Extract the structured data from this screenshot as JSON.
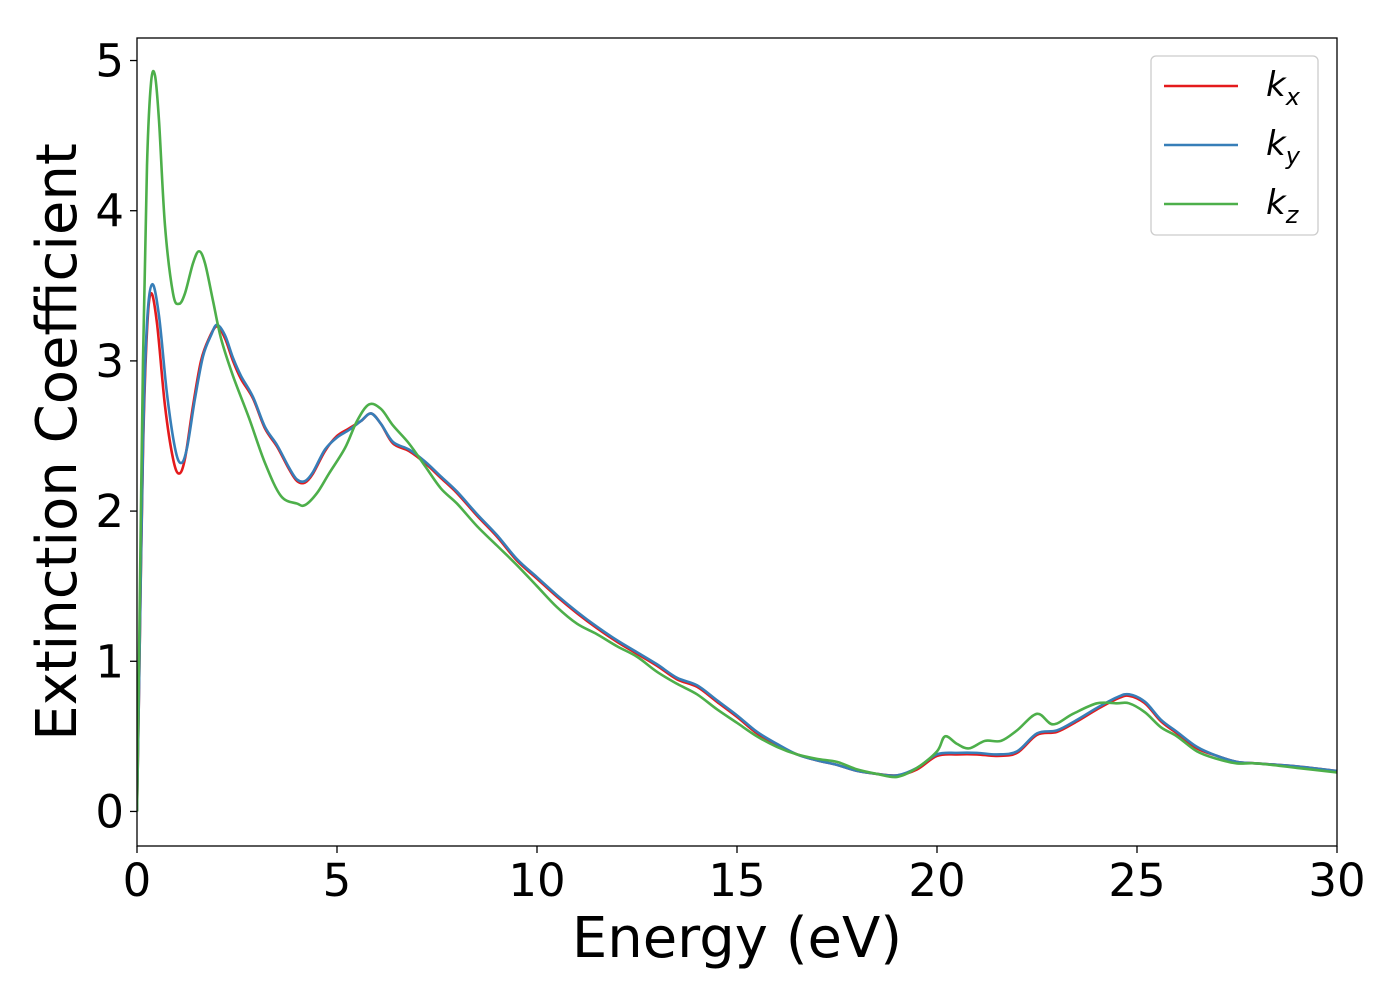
{
  "chart_data": {
    "type": "line",
    "xlabel": "Energy (eV)",
    "ylabel": "Extinction Coefficient",
    "xlim": [
      0,
      30
    ],
    "ylim": [
      -0.23,
      5.15
    ],
    "xticks": [
      0,
      5,
      10,
      15,
      20,
      25,
      30
    ],
    "yticks": [
      0,
      1,
      2,
      3,
      4,
      5
    ],
    "xtick_labels": [
      "0",
      "5",
      "10",
      "15",
      "20",
      "25",
      "30"
    ],
    "ytick_labels": [
      "0",
      "1",
      "2",
      "3",
      "4",
      "5"
    ],
    "grid": false,
    "legend_position": "top-right",
    "series": [
      {
        "name": "k",
        "name_sub": "x",
        "color": "#e41a1c",
        "points": [
          [
            0,
            0
          ],
          [
            0.05,
            0.8
          ],
          [
            0.15,
            2.4
          ],
          [
            0.25,
            3.2
          ],
          [
            0.35,
            3.45
          ],
          [
            0.5,
            3.25
          ],
          [
            0.7,
            2.7
          ],
          [
            0.9,
            2.35
          ],
          [
            1.05,
            2.25
          ],
          [
            1.2,
            2.35
          ],
          [
            1.4,
            2.7
          ],
          [
            1.6,
            3.0
          ],
          [
            1.8,
            3.15
          ],
          [
            2.0,
            3.23
          ],
          [
            2.2,
            3.15
          ],
          [
            2.4,
            3.0
          ],
          [
            2.6,
            2.88
          ],
          [
            2.9,
            2.75
          ],
          [
            3.2,
            2.55
          ],
          [
            3.5,
            2.43
          ],
          [
            3.8,
            2.28
          ],
          [
            4.0,
            2.2
          ],
          [
            4.2,
            2.19
          ],
          [
            4.4,
            2.25
          ],
          [
            4.7,
            2.4
          ],
          [
            5.0,
            2.5
          ],
          [
            5.3,
            2.55
          ],
          [
            5.6,
            2.6
          ],
          [
            5.85,
            2.65
          ],
          [
            6.1,
            2.58
          ],
          [
            6.4,
            2.45
          ],
          [
            6.8,
            2.4
          ],
          [
            7.2,
            2.32
          ],
          [
            7.6,
            2.22
          ],
          [
            8.0,
            2.12
          ],
          [
            8.5,
            1.97
          ],
          [
            9.0,
            1.83
          ],
          [
            9.5,
            1.67
          ],
          [
            10.0,
            1.55
          ],
          [
            10.5,
            1.43
          ],
          [
            11.0,
            1.32
          ],
          [
            11.5,
            1.22
          ],
          [
            12.0,
            1.13
          ],
          [
            12.5,
            1.05
          ],
          [
            13.0,
            0.97
          ],
          [
            13.5,
            0.88
          ],
          [
            14.0,
            0.83
          ],
          [
            14.5,
            0.73
          ],
          [
            15.0,
            0.63
          ],
          [
            15.5,
            0.52
          ],
          [
            16.0,
            0.44
          ],
          [
            16.5,
            0.38
          ],
          [
            17.0,
            0.34
          ],
          [
            17.5,
            0.31
          ],
          [
            18.0,
            0.27
          ],
          [
            18.5,
            0.25
          ],
          [
            19.0,
            0.24
          ],
          [
            19.5,
            0.28
          ],
          [
            20.0,
            0.37
          ],
          [
            20.5,
            0.38
          ],
          [
            21.0,
            0.38
          ],
          [
            21.5,
            0.37
          ],
          [
            22.0,
            0.39
          ],
          [
            22.5,
            0.51
          ],
          [
            23.0,
            0.53
          ],
          [
            23.5,
            0.6
          ],
          [
            24.0,
            0.68
          ],
          [
            24.5,
            0.75
          ],
          [
            24.8,
            0.77
          ],
          [
            25.2,
            0.72
          ],
          [
            25.6,
            0.6
          ],
          [
            26.0,
            0.52
          ],
          [
            26.5,
            0.42
          ],
          [
            27.0,
            0.37
          ],
          [
            27.5,
            0.33
          ],
          [
            28.0,
            0.32
          ],
          [
            29.0,
            0.3
          ],
          [
            30.0,
            0.27
          ]
        ]
      },
      {
        "name": "k",
        "name_sub": "y",
        "color": "#377eb8",
        "points": [
          [
            0,
            0
          ],
          [
            0.05,
            0.8
          ],
          [
            0.15,
            2.45
          ],
          [
            0.25,
            3.25
          ],
          [
            0.38,
            3.51
          ],
          [
            0.55,
            3.3
          ],
          [
            0.75,
            2.78
          ],
          [
            0.95,
            2.42
          ],
          [
            1.1,
            2.32
          ],
          [
            1.25,
            2.42
          ],
          [
            1.45,
            2.75
          ],
          [
            1.65,
            3.03
          ],
          [
            1.85,
            3.17
          ],
          [
            2.0,
            3.24
          ],
          [
            2.2,
            3.17
          ],
          [
            2.4,
            3.02
          ],
          [
            2.6,
            2.9
          ],
          [
            2.9,
            2.76
          ],
          [
            3.2,
            2.56
          ],
          [
            3.5,
            2.44
          ],
          [
            3.8,
            2.29
          ],
          [
            4.0,
            2.21
          ],
          [
            4.2,
            2.2
          ],
          [
            4.4,
            2.26
          ],
          [
            4.7,
            2.41
          ],
          [
            5.0,
            2.49
          ],
          [
            5.3,
            2.54
          ],
          [
            5.6,
            2.6
          ],
          [
            5.85,
            2.65
          ],
          [
            6.1,
            2.58
          ],
          [
            6.4,
            2.46
          ],
          [
            6.8,
            2.41
          ],
          [
            7.2,
            2.33
          ],
          [
            7.6,
            2.23
          ],
          [
            8.0,
            2.13
          ],
          [
            8.5,
            1.98
          ],
          [
            9.0,
            1.84
          ],
          [
            9.5,
            1.68
          ],
          [
            10.0,
            1.56
          ],
          [
            10.5,
            1.44
          ],
          [
            11.0,
            1.33
          ],
          [
            11.5,
            1.23
          ],
          [
            12.0,
            1.14
          ],
          [
            12.5,
            1.06
          ],
          [
            13.0,
            0.98
          ],
          [
            13.5,
            0.89
          ],
          [
            14.0,
            0.84
          ],
          [
            14.5,
            0.74
          ],
          [
            15.0,
            0.64
          ],
          [
            15.5,
            0.53
          ],
          [
            16.0,
            0.45
          ],
          [
            16.5,
            0.38
          ],
          [
            17.0,
            0.34
          ],
          [
            17.5,
            0.31
          ],
          [
            18.0,
            0.27
          ],
          [
            18.5,
            0.25
          ],
          [
            19.0,
            0.24
          ],
          [
            19.5,
            0.29
          ],
          [
            20.0,
            0.38
          ],
          [
            20.5,
            0.39
          ],
          [
            21.0,
            0.39
          ],
          [
            21.5,
            0.38
          ],
          [
            22.0,
            0.4
          ],
          [
            22.5,
            0.52
          ],
          [
            23.0,
            0.54
          ],
          [
            23.5,
            0.61
          ],
          [
            24.0,
            0.69
          ],
          [
            24.5,
            0.76
          ],
          [
            24.8,
            0.78
          ],
          [
            25.2,
            0.73
          ],
          [
            25.6,
            0.61
          ],
          [
            26.0,
            0.53
          ],
          [
            26.5,
            0.43
          ],
          [
            27.0,
            0.37
          ],
          [
            27.5,
            0.33
          ],
          [
            28.0,
            0.32
          ],
          [
            29.0,
            0.3
          ],
          [
            30.0,
            0.27
          ]
        ]
      },
      {
        "name": "k",
        "name_sub": "z",
        "color": "#4daf4a",
        "points": [
          [
            0,
            0
          ],
          [
            0.05,
            1.0
          ],
          [
            0.15,
            3.0
          ],
          [
            0.25,
            4.3
          ],
          [
            0.35,
            4.85
          ],
          [
            0.45,
            4.9
          ],
          [
            0.55,
            4.6
          ],
          [
            0.7,
            3.9
          ],
          [
            0.9,
            3.45
          ],
          [
            1.05,
            3.38
          ],
          [
            1.2,
            3.45
          ],
          [
            1.4,
            3.65
          ],
          [
            1.55,
            3.73
          ],
          [
            1.7,
            3.65
          ],
          [
            1.9,
            3.4
          ],
          [
            2.1,
            3.15
          ],
          [
            2.4,
            2.9
          ],
          [
            2.8,
            2.62
          ],
          [
            3.2,
            2.32
          ],
          [
            3.6,
            2.1
          ],
          [
            4.0,
            2.05
          ],
          [
            4.2,
            2.04
          ],
          [
            4.5,
            2.12
          ],
          [
            4.8,
            2.25
          ],
          [
            5.2,
            2.42
          ],
          [
            5.5,
            2.6
          ],
          [
            5.8,
            2.71
          ],
          [
            6.1,
            2.68
          ],
          [
            6.4,
            2.57
          ],
          [
            6.8,
            2.45
          ],
          [
            7.2,
            2.3
          ],
          [
            7.6,
            2.15
          ],
          [
            8.0,
            2.05
          ],
          [
            8.5,
            1.9
          ],
          [
            9.0,
            1.77
          ],
          [
            9.5,
            1.64
          ],
          [
            10.0,
            1.5
          ],
          [
            10.5,
            1.36
          ],
          [
            11.0,
            1.25
          ],
          [
            11.5,
            1.18
          ],
          [
            12.0,
            1.1
          ],
          [
            12.5,
            1.03
          ],
          [
            13.0,
            0.93
          ],
          [
            13.5,
            0.85
          ],
          [
            14.0,
            0.78
          ],
          [
            14.5,
            0.68
          ],
          [
            15.0,
            0.59
          ],
          [
            15.5,
            0.5
          ],
          [
            16.0,
            0.43
          ],
          [
            16.5,
            0.38
          ],
          [
            17.0,
            0.35
          ],
          [
            17.5,
            0.33
          ],
          [
            18.0,
            0.28
          ],
          [
            18.5,
            0.25
          ],
          [
            19.0,
            0.23
          ],
          [
            19.5,
            0.29
          ],
          [
            20.0,
            0.4
          ],
          [
            20.2,
            0.5
          ],
          [
            20.5,
            0.45
          ],
          [
            20.8,
            0.42
          ],
          [
            21.2,
            0.47
          ],
          [
            21.6,
            0.47
          ],
          [
            22.0,
            0.54
          ],
          [
            22.5,
            0.65
          ],
          [
            22.9,
            0.58
          ],
          [
            23.4,
            0.65
          ],
          [
            24.0,
            0.72
          ],
          [
            24.5,
            0.72
          ],
          [
            24.8,
            0.72
          ],
          [
            25.2,
            0.66
          ],
          [
            25.6,
            0.56
          ],
          [
            26.0,
            0.5
          ],
          [
            26.5,
            0.4
          ],
          [
            27.0,
            0.35
          ],
          [
            27.5,
            0.32
          ],
          [
            28.0,
            0.32
          ],
          [
            29.0,
            0.29
          ],
          [
            30.0,
            0.26
          ]
        ]
      }
    ]
  }
}
